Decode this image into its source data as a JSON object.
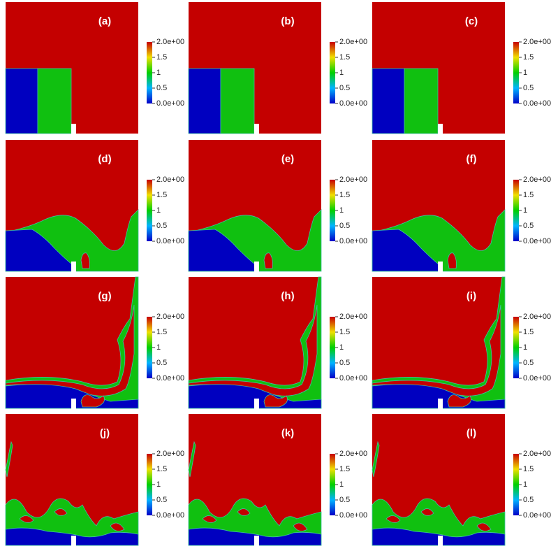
{
  "panels": [
    {
      "label": "(a)"
    },
    {
      "label": "(b)"
    },
    {
      "label": "(c)"
    },
    {
      "label": "(d)"
    },
    {
      "label": "(e)"
    },
    {
      "label": "(f)"
    },
    {
      "label": "(g)"
    },
    {
      "label": "(h)"
    },
    {
      "label": "(i)"
    },
    {
      "label": "(j)"
    },
    {
      "label": "(k)"
    },
    {
      "label": "(l)"
    }
  ],
  "colorbar": {
    "range": [
      0,
      2
    ],
    "ticks": [
      {
        "value": 2,
        "label": "2.0e+00"
      },
      1.5,
      1,
      0.5,
      {
        "value": 0,
        "label": "0.0e+00"
      }
    ]
  }
}
